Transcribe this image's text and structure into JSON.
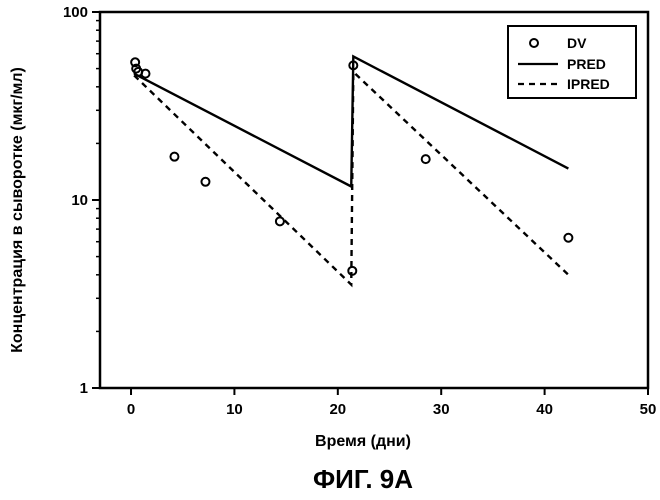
{
  "chart_data": {
    "type": "line",
    "title": "",
    "caption": "ФИГ. 9A",
    "xlabel": "Время (дни)",
    "ylabel": "Концентрация в сыворотке (мкг/мл)",
    "xlim": [
      -3,
      50
    ],
    "ylim": [
      1,
      100
    ],
    "yscale": "log",
    "grid": false,
    "legend_position": "top-right",
    "xticks": [
      0,
      10,
      20,
      30,
      40,
      50
    ],
    "xtick_labels": [
      "0",
      "10",
      "20",
      "30",
      "40",
      "50"
    ],
    "yticks": [
      1,
      10,
      100
    ],
    "ytick_labels": [
      "1",
      "10",
      "100"
    ],
    "series": [
      {
        "name": "DV",
        "style": "markers",
        "marker": "circle",
        "points": [
          {
            "x": 0.4,
            "y": 54
          },
          {
            "x": 0.5,
            "y": 50
          },
          {
            "x": 0.7,
            "y": 48
          },
          {
            "x": 1.4,
            "y": 47
          },
          {
            "x": 4.2,
            "y": 17
          },
          {
            "x": 7.2,
            "y": 12.5
          },
          {
            "x": 14.4,
            "y": 7.7
          },
          {
            "x": 21.4,
            "y": 4.2
          },
          {
            "x": 21.5,
            "y": 52
          },
          {
            "x": 28.5,
            "y": 16.5
          },
          {
            "x": 42.3,
            "y": 6.3
          }
        ]
      },
      {
        "name": "PRED",
        "style": "solid",
        "points": [
          {
            "x": 0.3,
            "y": 47
          },
          {
            "x": 21.3,
            "y": 11.8
          },
          {
            "x": 21.5,
            "y": 58
          },
          {
            "x": 42.3,
            "y": 14.7
          }
        ]
      },
      {
        "name": "IPRED",
        "style": "dashed",
        "points": [
          {
            "x": 0.3,
            "y": 46
          },
          {
            "x": 21.3,
            "y": 3.55
          },
          {
            "x": 21.5,
            "y": 48
          },
          {
            "x": 42.3,
            "y": 4
          }
        ]
      }
    ]
  }
}
